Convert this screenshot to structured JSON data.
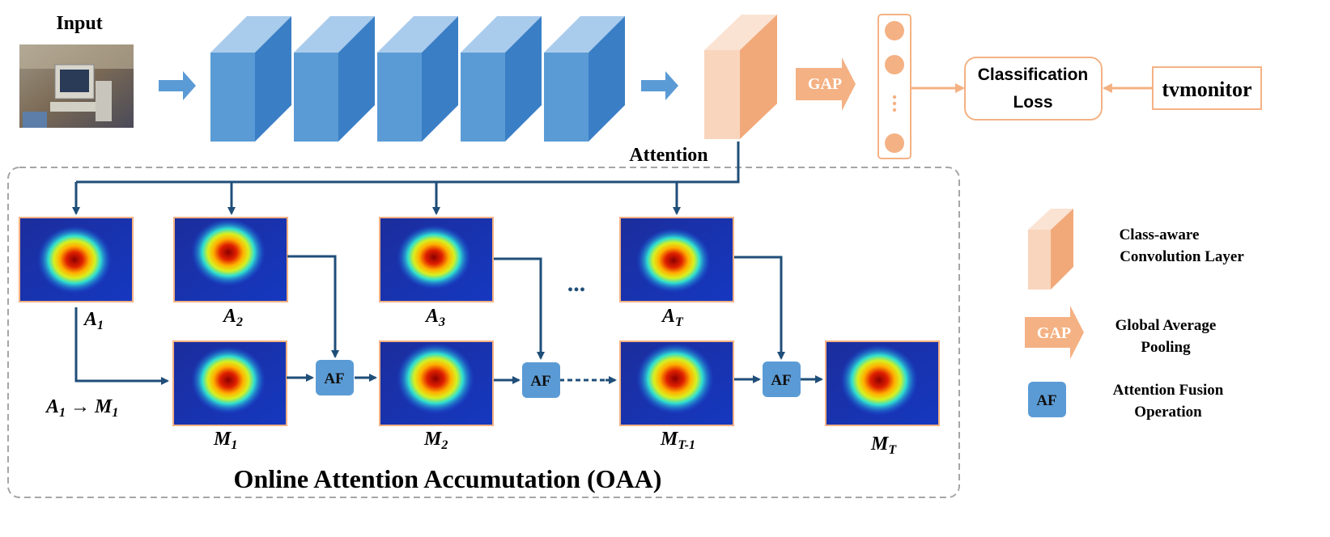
{
  "input_label": "Input",
  "attention_label": "Attention",
  "gap_label": "GAP",
  "classification_loss": {
    "line1": "Classification",
    "line2": "Loss"
  },
  "class_name": "tvmonitor",
  "oaa_title": "Online Attention Accumutation (OAA)",
  "af_label": "AF",
  "ellipsis": "...",
  "attention_maps": [
    {
      "base": "A",
      "sub": "1"
    },
    {
      "base": "A",
      "sub": "2"
    },
    {
      "base": "A",
      "sub": "3"
    },
    {
      "base": "A",
      "sub": "T"
    }
  ],
  "accumulated_maps": [
    {
      "base": "M",
      "sub": "1"
    },
    {
      "base": "M",
      "sub": "2"
    },
    {
      "base": "M",
      "sub": "T-1"
    },
    {
      "base": "M",
      "sub": "T"
    }
  ],
  "init_label": {
    "left_base": "A",
    "left_sub": "1",
    "arrow": "→",
    "right_base": "M",
    "right_sub": "1"
  },
  "legend": {
    "conv_line1": "Class-aware",
    "conv_line2": "Convolution Layer",
    "gap_line1": "Global Average",
    "gap_line2": "Pooling",
    "af_line1": "Attention Fusion",
    "af_line2": "Operation"
  },
  "colors": {
    "backbone_front": "#5b9bd5",
    "backbone_side": "#3a7fc6",
    "backbone_top": "#a9cbec",
    "class_conv_front": "#f9d5bd",
    "class_conv_side": "#f2a979",
    "class_conv_top": "#fbe3d3",
    "orange_accent": "#f4b183",
    "flow_arrow": "#1f4e79",
    "af_box": "#5b9bd5",
    "heatmap_frame": "#f4b183"
  }
}
